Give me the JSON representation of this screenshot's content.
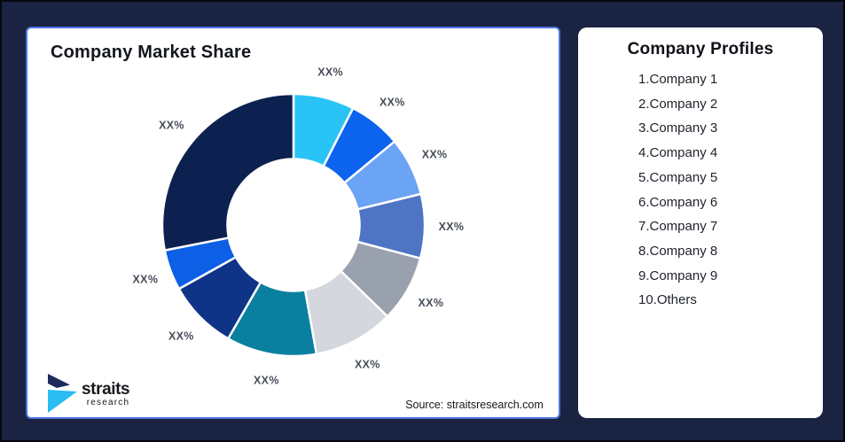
{
  "chart": {
    "title": "Company Market Share"
  },
  "source": {
    "label": "Source: straitsresearch.com"
  },
  "logo": {
    "name": "straits",
    "sub": "research",
    "colors": {
      "navy": "#1b2b5e",
      "cyan": "#29bdf2"
    }
  },
  "profiles": {
    "title": "Company Profiles",
    "items": [
      "1.Company 1",
      "2.Company 2",
      "3.Company 3",
      "4.Company 4",
      "5.Company 5",
      "6.Company 6",
      "7.Company 7",
      "8.Company 8",
      "9.Company 9",
      "10.Others"
    ]
  },
  "chart_data": {
    "type": "pie",
    "subtype": "donut",
    "title": "Company Market Share",
    "direction": "clockwise",
    "start_angle_deg": 0,
    "inner_radius_ratio": 0.5,
    "legend_position": "none",
    "note": "All slice data labels are XX% placeholders; percents below are visual estimates of arc size",
    "segments": [
      {
        "name": "Company 1",
        "label": "XX%",
        "percent": 7.5,
        "color": "#29c4f5"
      },
      {
        "name": "Company 2",
        "label": "XX%",
        "percent": 6.5,
        "color": "#0b63ee"
      },
      {
        "name": "Company 3",
        "label": "XX%",
        "percent": 7.2,
        "color": "#6ba3f5"
      },
      {
        "name": "Company 4",
        "label": "XX%",
        "percent": 7.9,
        "color": "#4e74c4"
      },
      {
        "name": "Company 5",
        "label": "XX%",
        "percent": 8.2,
        "color": "#99a1af"
      },
      {
        "name": "Company 6",
        "label": "XX%",
        "percent": 9.9,
        "color": "#d4d7dd"
      },
      {
        "name": "Company 7",
        "label": "XX%",
        "percent": 11.1,
        "color": "#0a80a0"
      },
      {
        "name": "Company 8",
        "label": "XX%",
        "percent": 8.6,
        "color": "#0f3386"
      },
      {
        "name": "Company 9",
        "label": "XX%",
        "percent": 5.0,
        "color": "#0d5fe6"
      },
      {
        "name": "Others",
        "label": "XX%",
        "percent": 28.1,
        "color": "#0d2150"
      }
    ]
  },
  "frame": {
    "background": "#1b2342",
    "card_border": "#4b72e0"
  }
}
